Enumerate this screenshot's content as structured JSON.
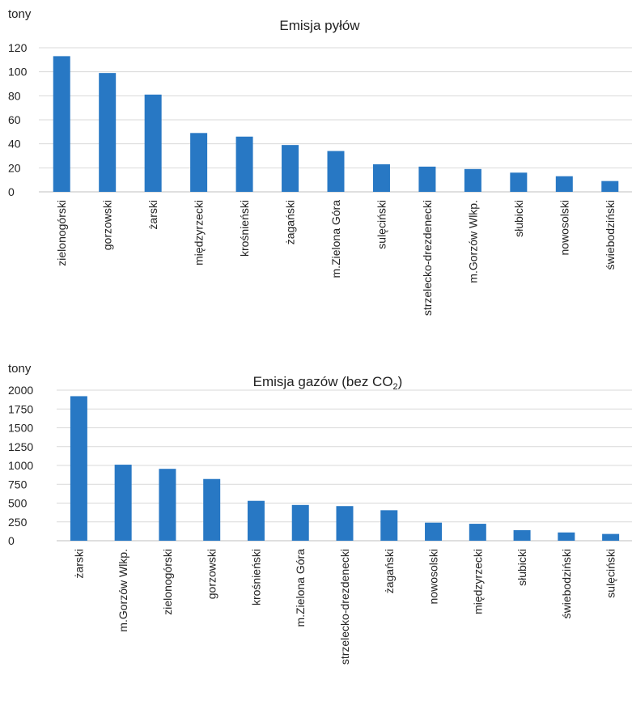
{
  "chart_data": [
    {
      "type": "bar",
      "title": "Emisja pyłów",
      "unit_label": "tony",
      "ylim": [
        0,
        120
      ],
      "y_ticks": [
        "0",
        "20",
        "40",
        "60",
        "80",
        "100",
        "120"
      ],
      "grid": true,
      "categories": [
        "zielonogórski",
        "gorzowski",
        "żarski",
        "międzyrzecki",
        "krośnieński",
        "żagański",
        "m.Zielona Góra",
        "sulęciński",
        "strzelecko-drezdenecki",
        "m.Gorzów Wlkp.",
        "słubicki",
        "nowosolski",
        "świebodziński"
      ],
      "values": [
        113,
        99,
        81,
        49,
        46,
        39,
        34,
        23,
        21,
        19,
        16,
        13,
        9
      ],
      "color": "#2878c4"
    },
    {
      "type": "bar",
      "title": "Emisja gazów (bez CO",
      "title_sub": "2",
      "title_end": ")",
      "unit_label": "tony",
      "ylim": [
        0,
        2000
      ],
      "y_ticks": [
        "0",
        "250",
        "500",
        "750",
        "1000",
        "1250",
        "1500",
        "1750",
        "2000"
      ],
      "grid": true,
      "categories": [
        "żarski",
        "m.Gorzów Wlkp.",
        "zielonogórski",
        "gorzowski",
        "krośnieński",
        "m.Zielona Góra",
        "strzelecko-drezdenecki",
        "żagański",
        "nowosolski",
        "międzyrzecki",
        "słubicki",
        "świebodziński",
        "sulęciński"
      ],
      "values": [
        1920,
        1010,
        955,
        820,
        530,
        475,
        460,
        405,
        240,
        225,
        140,
        110,
        90
      ],
      "color": "#2878c4"
    }
  ]
}
